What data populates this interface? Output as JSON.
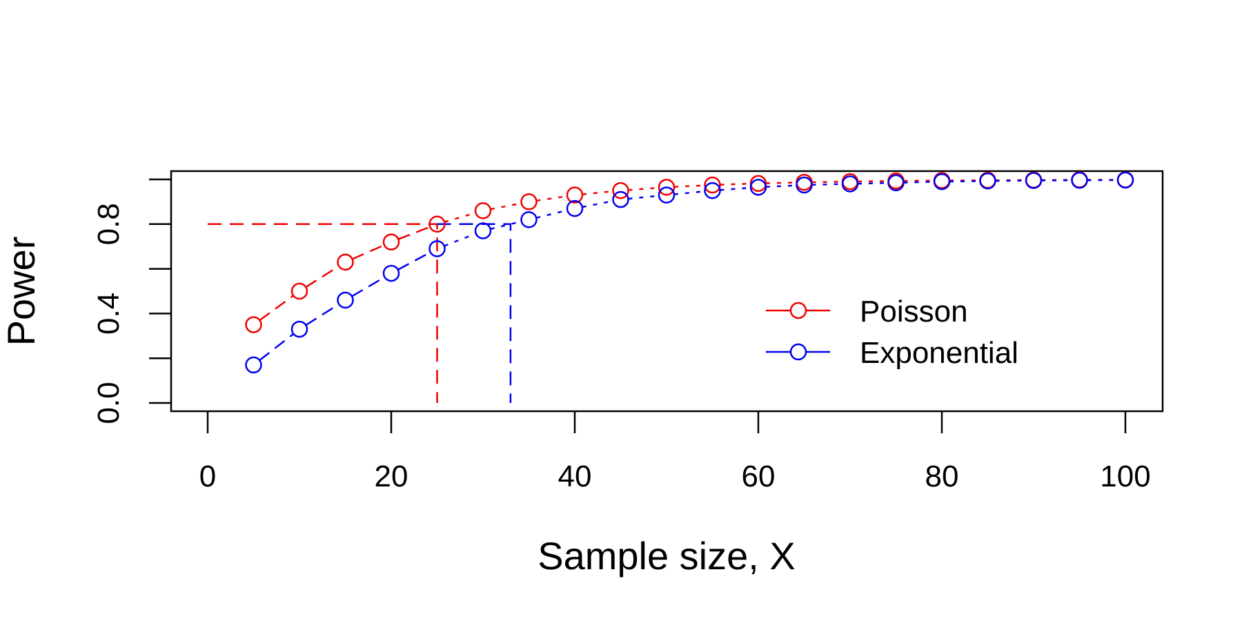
{
  "chart_data": {
    "type": "line",
    "title": "",
    "xlabel": "Sample size, X",
    "ylabel": "Power",
    "xlim": [
      0,
      100
    ],
    "ylim": [
      0,
      1
    ],
    "xticks": [
      0,
      20,
      40,
      60,
      80,
      100
    ],
    "xtick_labels": [
      "0",
      "20",
      "40",
      "60",
      "80",
      "100"
    ],
    "yticks": [
      0,
      0.2,
      0.4,
      0.6,
      0.8,
      1.0
    ],
    "ytick_labels": [
      "0.0",
      "",
      "0.4",
      "",
      "0.8",
      ""
    ],
    "grid": false,
    "legend_position": "right",
    "x": [
      5,
      10,
      15,
      20,
      25,
      30,
      35,
      40,
      45,
      50,
      55,
      60,
      65,
      70,
      75,
      80,
      85,
      90,
      95,
      100
    ],
    "series": [
      {
        "name": "Poisson",
        "color": "#ee0000",
        "values": [
          0.35,
          0.5,
          0.63,
          0.72,
          0.8,
          0.86,
          0.9,
          0.93,
          0.95,
          0.965,
          0.975,
          0.982,
          0.987,
          0.99,
          0.993,
          0.995,
          0.996,
          0.997,
          0.998,
          0.998
        ]
      },
      {
        "name": "Exponential",
        "color": "#0000ee",
        "values": [
          0.17,
          0.33,
          0.46,
          0.58,
          0.69,
          0.77,
          0.82,
          0.87,
          0.91,
          0.93,
          0.95,
          0.965,
          0.975,
          0.98,
          0.985,
          0.99,
          0.993,
          0.995,
          0.996,
          0.997
        ]
      }
    ],
    "reference_lines": [
      {
        "color": "#ee0000",
        "from": [
          0,
          0.8
        ],
        "corner": [
          25,
          0.8
        ],
        "to": [
          25,
          0
        ]
      },
      {
        "color": "#0000ee",
        "from": [
          25,
          0.8
        ],
        "corner": [
          33,
          0.8
        ],
        "to": [
          33,
          0
        ]
      }
    ]
  }
}
